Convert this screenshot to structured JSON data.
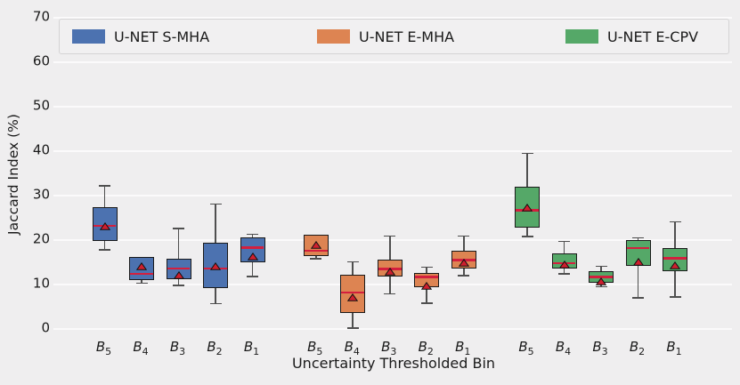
{
  "figure": {
    "background": "#efeeef",
    "grid_color": "#fbfafb",
    "text_color": "#1a1a1a",
    "box_edge_color": "#1a1a1a",
    "whisker_color": "#4f4f4f",
    "median_color": "#d41f3e",
    "mean_marker": "red-triangle-up",
    "mean_fill": "#cf1f2e",
    "mean_edge": "#111111",
    "legend_bg": "#f1f0f1",
    "legend_border": "#d4d3d4"
  },
  "chart_data": {
    "type": "box",
    "title": "",
    "xlabel": "Uncertainty Thresholded Bin",
    "ylabel": "Jaccard Index (%)",
    "ylim": [
      0,
      70
    ],
    "yticks": [
      0,
      10,
      20,
      30,
      40,
      50,
      60,
      70
    ],
    "grid": true,
    "legend_position": "upper center horizontal",
    "categories": [
      "B_5",
      "B_4",
      "B_3",
      "B_2",
      "B_1"
    ],
    "series": [
      {
        "name": "U-NET S-MHA",
        "color": "#4c72b0",
        "boxes": [
          {
            "bin": "B_5",
            "whislo": 17.8,
            "q1": 19.7,
            "med": 23.0,
            "mean": 24.2,
            "q3": 27.3,
            "whishi": 32.2
          },
          {
            "bin": "B_4",
            "whislo": 10.3,
            "q1": 10.8,
            "med": 12.2,
            "mean": 15.2,
            "q3": 16.0,
            "whishi": 16.0
          },
          {
            "bin": "B_3",
            "whislo": 9.8,
            "q1": 11.1,
            "med": 13.4,
            "mean": 13.2,
            "q3": 15.7,
            "whishi": 22.6
          },
          {
            "bin": "B_2",
            "whislo": 5.7,
            "q1": 9.1,
            "med": 13.4,
            "mean": 15.1,
            "q3": 19.2,
            "whishi": 28.1
          },
          {
            "bin": "B_1",
            "whislo": 11.8,
            "q1": 14.9,
            "med": 18.1,
            "mean": 17.3,
            "q3": 20.5,
            "whishi": 21.3
          }
        ]
      },
      {
        "name": "U-NET E-MHA",
        "color": "#dd8452",
        "boxes": [
          {
            "bin": "B_5",
            "whislo": 15.8,
            "q1": 16.3,
            "med": 17.4,
            "mean": 20.0,
            "q3": 21.1,
            "whishi": 21.1
          },
          {
            "bin": "B_4",
            "whislo": 0.2,
            "q1": 3.5,
            "med": 8.0,
            "mean": 8.2,
            "q3": 12.0,
            "whishi": 15.1
          },
          {
            "bin": "B_3",
            "whislo": 7.9,
            "q1": 11.6,
            "med": 13.3,
            "mean": 14.0,
            "q3": 15.4,
            "whishi": 20.9
          },
          {
            "bin": "B_2",
            "whislo": 5.8,
            "q1": 9.3,
            "med": 11.5,
            "mean": 10.8,
            "q3": 12.5,
            "whishi": 13.9
          },
          {
            "bin": "B_1",
            "whislo": 12.0,
            "q1": 13.5,
            "med": 15.3,
            "mean": 16.0,
            "q3": 17.5,
            "whishi": 20.9
          }
        ]
      },
      {
        "name": "U-NET E-CPV",
        "color": "#55a868",
        "boxes": [
          {
            "bin": "B_5",
            "whislo": 20.8,
            "q1": 22.6,
            "med": 26.5,
            "mean": 28.3,
            "q3": 31.9,
            "whishi": 39.5
          },
          {
            "bin": "B_4",
            "whislo": 12.4,
            "q1": 13.5,
            "med": 14.6,
            "mean": 15.5,
            "q3": 16.9,
            "whishi": 19.7
          },
          {
            "bin": "B_3",
            "whislo": 9.5,
            "q1": 10.3,
            "med": 11.5,
            "mean": 11.7,
            "q3": 12.9,
            "whishi": 14.1
          },
          {
            "bin": "B_2",
            "whislo": 7.0,
            "q1": 14.1,
            "med": 18.0,
            "mean": 16.2,
            "q3": 19.8,
            "whishi": 20.5
          },
          {
            "bin": "B_1",
            "whislo": 7.2,
            "q1": 12.8,
            "med": 15.7,
            "mean": 15.4,
            "q3": 18.1,
            "whishi": 24.1
          }
        ]
      }
    ]
  }
}
